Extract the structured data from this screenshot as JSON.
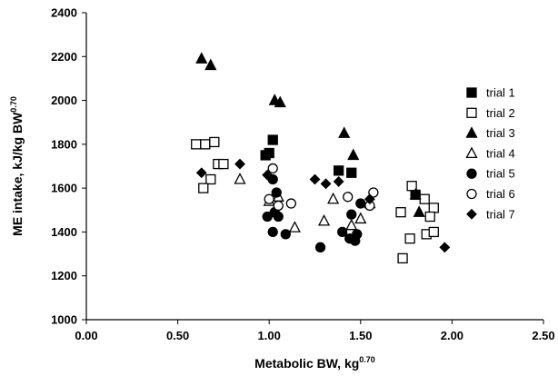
{
  "chart_data": {
    "type": "scatter",
    "xlabel": "Metabolic BW, kg",
    "xlabel_sup": "0.70",
    "ylabel": "ME intake, kJ/kg BW",
    "ylabel_sup": "0.70",
    "xlim": [
      0,
      2.5
    ],
    "ylim": [
      1000,
      2400
    ],
    "x_ticks": [
      "0.00",
      "0.50",
      "1.00",
      "1.50",
      "2.00",
      "2.50"
    ],
    "y_ticks": [
      "1000",
      "1200",
      "1400",
      "1600",
      "1800",
      "2000",
      "2200",
      "2400"
    ],
    "x_tick_values": [
      0,
      0.5,
      1.0,
      1.5,
      2.0,
      2.5
    ],
    "y_tick_values": [
      1000,
      1200,
      1400,
      1600,
      1800,
      2000,
      2200,
      2400
    ],
    "grid": false,
    "legend_position": "right",
    "series": [
      {
        "name": "trial 1",
        "marker": "square-filled",
        "points": [
          [
            1.0,
            1760
          ],
          [
            1.02,
            1820
          ],
          [
            1.38,
            1680
          ],
          [
            1.45,
            1670
          ],
          [
            1.8,
            1570
          ],
          [
            0.98,
            1750
          ]
        ]
      },
      {
        "name": "trial 2",
        "marker": "square-open",
        "points": [
          [
            0.6,
            1800
          ],
          [
            0.65,
            1800
          ],
          [
            0.7,
            1810
          ],
          [
            0.72,
            1710
          ],
          [
            0.75,
            1710
          ],
          [
            0.68,
            1640
          ],
          [
            0.64,
            1600
          ],
          [
            1.72,
            1490
          ],
          [
            1.77,
            1370
          ],
          [
            1.78,
            1610
          ],
          [
            1.85,
            1550
          ],
          [
            1.86,
            1390
          ],
          [
            1.9,
            1510
          ],
          [
            1.88,
            1470
          ],
          [
            1.9,
            1400
          ],
          [
            1.73,
            1280
          ]
        ]
      },
      {
        "name": "trial 3",
        "marker": "triangle-filled",
        "points": [
          [
            0.63,
            2190
          ],
          [
            0.68,
            2160
          ],
          [
            1.03,
            2000
          ],
          [
            1.06,
            1990
          ],
          [
            1.41,
            1850
          ],
          [
            1.46,
            1750
          ],
          [
            1.8,
            1570
          ],
          [
            1.82,
            1490
          ]
        ]
      },
      {
        "name": "trial 4",
        "marker": "triangle-open",
        "points": [
          [
            0.84,
            1640
          ],
          [
            1.0,
            1540
          ],
          [
            1.05,
            1560
          ],
          [
            1.14,
            1420
          ],
          [
            1.3,
            1450
          ],
          [
            1.35,
            1550
          ],
          [
            1.45,
            1430
          ],
          [
            1.5,
            1460
          ],
          [
            1.55,
            1530
          ]
        ]
      },
      {
        "name": "trial 5",
        "marker": "circle-filled",
        "points": [
          [
            0.99,
            1470
          ],
          [
            1.02,
            1640
          ],
          [
            1.04,
            1580
          ],
          [
            1.03,
            1490
          ],
          [
            1.05,
            1470
          ],
          [
            1.02,
            1400
          ],
          [
            1.09,
            1390
          ],
          [
            1.28,
            1330
          ],
          [
            1.4,
            1400
          ],
          [
            1.44,
            1370
          ],
          [
            1.45,
            1480
          ],
          [
            1.47,
            1360
          ],
          [
            1.48,
            1390
          ],
          [
            1.5,
            1530
          ]
        ]
      },
      {
        "name": "trial 6",
        "marker": "circle-open",
        "points": [
          [
            1.0,
            1550
          ],
          [
            1.02,
            1690
          ],
          [
            1.05,
            1520
          ],
          [
            1.12,
            1530
          ],
          [
            1.43,
            1560
          ],
          [
            1.55,
            1520
          ],
          [
            1.57,
            1580
          ]
        ]
      },
      {
        "name": "trial 7",
        "marker": "diamond-filled",
        "points": [
          [
            0.63,
            1670
          ],
          [
            0.84,
            1710
          ],
          [
            0.99,
            1660
          ],
          [
            1.25,
            1640
          ],
          [
            1.31,
            1620
          ],
          [
            1.38,
            1630
          ],
          [
            1.55,
            1550
          ],
          [
            1.96,
            1330
          ]
        ]
      }
    ]
  }
}
